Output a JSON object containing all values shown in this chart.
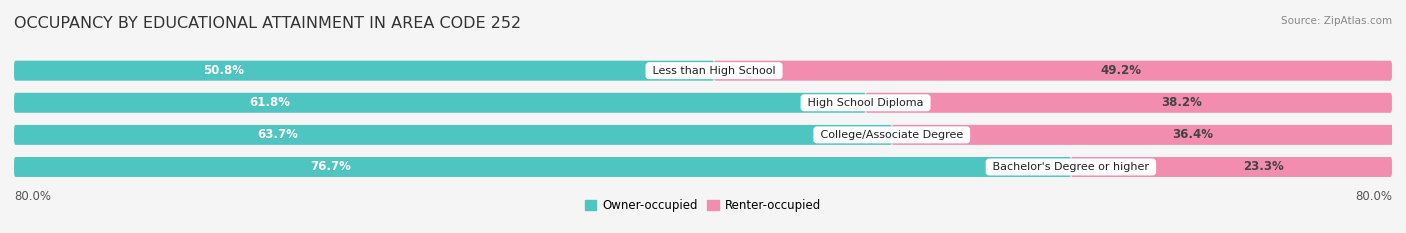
{
  "title": "OCCUPANCY BY EDUCATIONAL ATTAINMENT IN AREA CODE 252",
  "source": "Source: ZipAtlas.com",
  "categories": [
    "Less than High School",
    "High School Diploma",
    "College/Associate Degree",
    "Bachelor's Degree or higher"
  ],
  "owner_values": [
    50.8,
    61.8,
    63.7,
    76.7
  ],
  "renter_values": [
    49.2,
    38.2,
    36.4,
    23.3
  ],
  "owner_color": "#4EC5C1",
  "renter_color": "#F28DB0",
  "background_color": "#f5f5f5",
  "bar_bg_color": "#e2e2e2",
  "bar_height": 0.62,
  "bar_gap": 0.38,
  "xlim_left": -80.0,
  "xlim_right": 80.0,
  "title_fontsize": 11.5,
  "value_fontsize": 8.5,
  "category_fontsize": 8.0,
  "legend_fontsize": 8.5,
  "axis_label_fontsize": 8.5
}
